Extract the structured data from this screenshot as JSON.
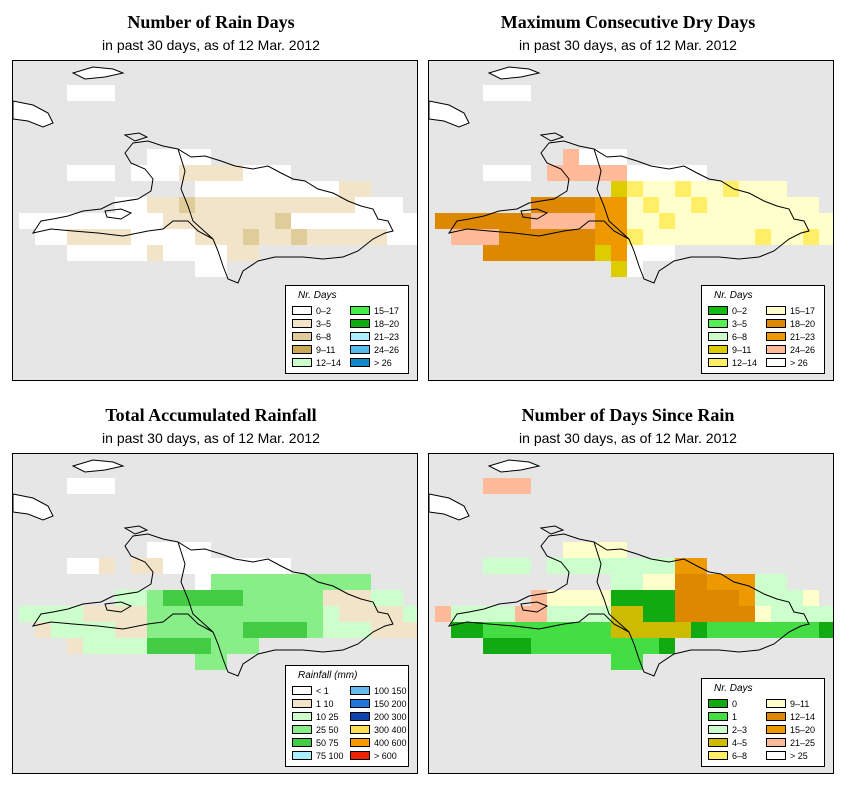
{
  "panels": [
    {
      "id": "rain-days",
      "title": "Number of Rain Days",
      "subtitle": "in past 30 days, as of  12 Mar. 2012",
      "legend": {
        "title": "Nr. Days",
        "items": [
          {
            "label": "0–2",
            "color": "#ffffff"
          },
          {
            "label": "3–5",
            "color": "#f2e4c8"
          },
          {
            "label": "6–8",
            "color": "#e0cc98"
          },
          {
            "label": "9–11",
            "color": "#ccaa55"
          },
          {
            "label": "12–14",
            "color": "#ccffcc"
          },
          {
            "label": "15–17",
            "color": "#44ee44"
          },
          {
            "label": "18–20",
            "color": "#11aa11"
          },
          {
            "label": "21–23",
            "color": "#aaeeff"
          },
          {
            "label": "24–26",
            "color": "#55bbee"
          },
          {
            "label": "> 26",
            "color": "#1188cc"
          }
        ]
      }
    },
    {
      "id": "dry-days",
      "title": "Maximum Consecutive Dry Days",
      "subtitle": "in past 30 days, as of  12 Mar. 2012",
      "legend": {
        "title": "Nr. Days",
        "items": [
          {
            "label": "0–2",
            "color": "#11bb11"
          },
          {
            "label": "3–5",
            "color": "#55ee55"
          },
          {
            "label": "6–8",
            "color": "#ccffcc"
          },
          {
            "label": "9–11",
            "color": "#ddcc00"
          },
          {
            "label": "12–14",
            "color": "#ffee66"
          },
          {
            "label": "15–17",
            "color": "#ffffcc"
          },
          {
            "label": "18–20",
            "color": "#dd8800"
          },
          {
            "label": "21–23",
            "color": "#ee9900"
          },
          {
            "label": "24–26",
            "color": "#ffbb99"
          },
          {
            "label": "> 26",
            "color": "#ffffff"
          }
        ]
      }
    },
    {
      "id": "rainfall",
      "title": "Total Accumulated Rainfall",
      "subtitle": "in past 30 days, as of  12 Mar. 2012",
      "legend": {
        "title": "Rainfall (mm)",
        "items": [
          {
            "label": "< 1",
            "color": "#ffffff"
          },
          {
            "label": "1    10",
            "color": "#f2e4c8"
          },
          {
            "label": "10    25",
            "color": "#ccffcc"
          },
          {
            "label": "25    50",
            "color": "#88ee88"
          },
          {
            "label": "50    75",
            "color": "#44cc44"
          },
          {
            "label": "75   100",
            "color": "#aaeeff"
          },
          {
            "label": "100  150",
            "color": "#66bbee"
          },
          {
            "label": "150  200",
            "color": "#2277dd"
          },
          {
            "label": "200  300",
            "color": "#1144aa"
          },
          {
            "label": "300  400",
            "color": "#ffdd55"
          },
          {
            "label": "400  600",
            "color": "#ff9900"
          },
          {
            "label": "> 600",
            "color": "#ee2200"
          }
        ]
      }
    },
    {
      "id": "since-rain",
      "title": "Number of Days Since Rain",
      "subtitle": "in past 30 days, as of  12 Mar. 2012",
      "legend": {
        "title": "Nr. Days",
        "items": [
          {
            "label": "0",
            "color": "#11aa11"
          },
          {
            "label": "1",
            "color": "#44dd44"
          },
          {
            "label": "2–3",
            "color": "#ccffcc"
          },
          {
            "label": "4–5",
            "color": "#ccbb00"
          },
          {
            "label": "6–8",
            "color": "#ffee66"
          },
          {
            "label": "9–11",
            "color": "#ffffcc"
          },
          {
            "label": "12–14",
            "color": "#dd8800"
          },
          {
            "label": "15–20",
            "color": "#ee9900"
          },
          {
            "label": "21–25",
            "color": "#ffbb99"
          },
          {
            "label": "> 25",
            "color": "#ffffff"
          }
        ]
      }
    }
  ]
}
